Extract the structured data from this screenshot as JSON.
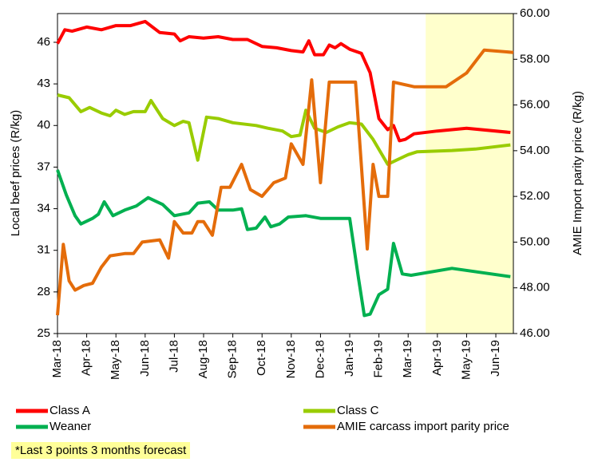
{
  "chart_data": {
    "type": "line",
    "y_label": "Local beef prices (R/kg)",
    "y2_label": "AMIE Import parity price (R/kg)",
    "note": "*Last 3 points 3 months forecast",
    "forecast_region": [
      12.6,
      15.6
    ],
    "forecast_color": "#ffffcc",
    "xlim": [
      0,
      15.6
    ],
    "xticks": [
      {
        "value": 0,
        "label": "Mar-18"
      },
      {
        "value": 1,
        "label": "Apr-18"
      },
      {
        "value": 2,
        "label": "May-18"
      },
      {
        "value": 3,
        "label": "Jun-18"
      },
      {
        "value": 4,
        "label": "Jul-18"
      },
      {
        "value": 5,
        "label": "Aug-18"
      },
      {
        "value": 6,
        "label": "Sep-18"
      },
      {
        "value": 7,
        "label": "Oct-18"
      },
      {
        "value": 8,
        "label": "Nov-18"
      },
      {
        "value": 9,
        "label": "Dec-18"
      },
      {
        "value": 10,
        "label": "Jan-19"
      },
      {
        "value": 11,
        "label": "Feb-19"
      },
      {
        "value": 12,
        "label": "Mar-19"
      },
      {
        "value": 13,
        "label": "Apr-19"
      },
      {
        "value": 14,
        "label": "May-19"
      },
      {
        "value": 15,
        "label": "Jun-19"
      }
    ],
    "ylim": [
      25,
      48.07
    ],
    "yticks": [
      25,
      28,
      31,
      34,
      37,
      40,
      43,
      46
    ],
    "y2lim": [
      46,
      60
    ],
    "y2ticks": [
      {
        "value": 46,
        "label": "46.00"
      },
      {
        "value": 48,
        "label": "48.00"
      },
      {
        "value": 50,
        "label": "50.00"
      },
      {
        "value": 52,
        "label": "52.00"
      },
      {
        "value": 54,
        "label": "54.00"
      },
      {
        "value": 56,
        "label": "56.00"
      },
      {
        "value": 58,
        "label": "58.00"
      },
      {
        "value": 60,
        "label": "60.00"
      }
    ],
    "series": [
      {
        "name": "Class A",
        "color": "#ff0000",
        "axis": "y",
        "x": [
          0,
          0.25,
          0.5,
          1,
          1.5,
          2,
          2.5,
          3,
          3.5,
          4,
          4.2,
          4.5,
          5,
          5.5,
          6,
          6.5,
          7,
          7.5,
          8,
          8.4,
          8.6,
          8.8,
          9.1,
          9.3,
          9.5,
          9.7,
          10,
          10.4,
          10.7,
          11,
          11.3,
          11.5,
          11.7,
          11.9,
          12.2,
          13,
          14,
          15.5
        ],
        "values": [
          45.9,
          46.9,
          46.8,
          47.1,
          46.9,
          47.2,
          47.2,
          47.5,
          46.7,
          46.6,
          46.1,
          46.4,
          46.3,
          46.4,
          46.2,
          46.2,
          45.7,
          45.6,
          45.4,
          45.3,
          46.1,
          45.1,
          45.1,
          45.8,
          45.6,
          45.9,
          45.5,
          45.2,
          43.8,
          40.5,
          39.7,
          40.0,
          38.9,
          39.0,
          39.4,
          39.6,
          39.8,
          39.5
        ]
      },
      {
        "name": "Class C",
        "color": "#99cc00",
        "axis": "y",
        "x": [
          0,
          0.4,
          0.8,
          1.1,
          1.5,
          1.8,
          2,
          2.3,
          2.6,
          3,
          3.2,
          3.6,
          4,
          4.3,
          4.5,
          4.8,
          5.1,
          5.5,
          6,
          6.8,
          7.2,
          7.7,
          8,
          8.3,
          8.5,
          8.8,
          9.2,
          9.6,
          10,
          10.4,
          10.8,
          11.3,
          11.6,
          12,
          12.3,
          13.5,
          14.3,
          15.5
        ],
        "values": [
          42.2,
          42.0,
          41.0,
          41.3,
          40.9,
          40.7,
          41.1,
          40.8,
          41.0,
          41.0,
          41.8,
          40.5,
          40.0,
          40.3,
          40.2,
          37.5,
          40.6,
          40.5,
          40.2,
          40.0,
          39.8,
          39.6,
          39.2,
          39.3,
          41.1,
          39.8,
          39.5,
          39.9,
          40.2,
          40.1,
          39.0,
          37.2,
          37.5,
          37.9,
          38.1,
          38.2,
          38.3,
          38.6
        ]
      },
      {
        "name": "Weaner",
        "color": "#00b050",
        "axis": "y",
        "x": [
          0,
          0.3,
          0.6,
          0.8,
          1.2,
          1.4,
          1.6,
          1.9,
          2.3,
          2.7,
          3.1,
          3.6,
          4,
          4.5,
          4.8,
          5.2,
          5.5,
          6,
          6.3,
          6.5,
          6.8,
          7.1,
          7.3,
          7.6,
          7.9,
          8.5,
          9,
          9.8,
          10,
          10.3,
          10.5,
          10.7,
          11,
          11.3,
          11.5,
          11.8,
          12.1,
          13.5,
          15.5
        ],
        "values": [
          36.8,
          35,
          33.5,
          32.9,
          33.3,
          33.6,
          34.5,
          33.5,
          33.9,
          34.2,
          34.8,
          34.3,
          33.5,
          33.7,
          34.4,
          34.5,
          33.9,
          33.9,
          34.0,
          32.5,
          32.6,
          33.4,
          32.7,
          32.9,
          33.4,
          33.5,
          33.3,
          33.3,
          33.3,
          29.0,
          26.3,
          26.4,
          27.8,
          28.2,
          31.5,
          29.3,
          29.2,
          29.7,
          29.1
        ]
      },
      {
        "name": "AMIE carcass import parity price",
        "color": "#e46c0a",
        "axis": "y2",
        "x": [
          0,
          0.2,
          0.4,
          0.6,
          0.9,
          1.2,
          1.5,
          1.8,
          2.3,
          2.6,
          2.9,
          3.5,
          3.8,
          4.0,
          4.3,
          4.6,
          4.8,
          5.0,
          5.3,
          5.6,
          5.9,
          6.3,
          6.6,
          7.0,
          7.4,
          7.8,
          8.0,
          8.4,
          8.7,
          9.0,
          9.3,
          9.8,
          10.2,
          10.6,
          10.8,
          11.0,
          11.3,
          11.5,
          12.2,
          13.3,
          14.0,
          14.6,
          15.6
        ],
        "values": [
          46.8,
          49.9,
          48.3,
          47.9,
          48.1,
          48.2,
          48.9,
          49.4,
          49.5,
          49.5,
          50.0,
          50.1,
          49.3,
          50.9,
          50.4,
          50.4,
          50.9,
          50.9,
          50.3,
          52.4,
          52.4,
          53.4,
          52.3,
          52.0,
          52.6,
          52.8,
          54.3,
          53.4,
          57.1,
          52.6,
          57.0,
          57.0,
          57.0,
          49.7,
          53.4,
          52.0,
          52.0,
          57.0,
          56.8,
          56.8,
          57.4,
          58.4,
          58.3
        ]
      }
    ]
  }
}
